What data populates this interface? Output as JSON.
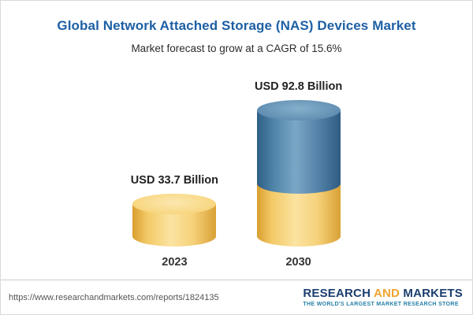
{
  "header": {
    "title": "Global Network Attached Storage (NAS) Devices Market",
    "subtitle": "Market forecast to grow at a CAGR of 15.6%"
  },
  "chart_data": {
    "type": "bar",
    "bar_style": "3d-cylinder",
    "categories": [
      "2023",
      "2030"
    ],
    "values": [
      33.7,
      92.8
    ],
    "value_labels": [
      "USD 33.7 Billion",
      "USD 92.8 Billion"
    ],
    "unit": "USD Billion",
    "title": "Global Network Attached Storage (NAS) Devices Market",
    "subtitle": "Market forecast to grow at a CAGR of 15.6%",
    "cagr_percent": 15.6,
    "legend_position": "none",
    "grid": false,
    "colors": {
      "base_segment": "#f3ca67",
      "growth_segment": "#4f84a9",
      "title_text": "#1d5fa5"
    },
    "notes": "2030 cylinder is stacked: yellow lower segment equals 2023 value, blue upper segment is incremental growth to 92.8"
  },
  "footer": {
    "url": "https://www.researchandmarkets.com/reports/1824135",
    "logo": {
      "research": "RESEARCH",
      "and": "AND",
      "markets": "MARKETS",
      "tagline": "THE WORLD'S LARGEST MARKET RESEARCH STORE"
    }
  }
}
